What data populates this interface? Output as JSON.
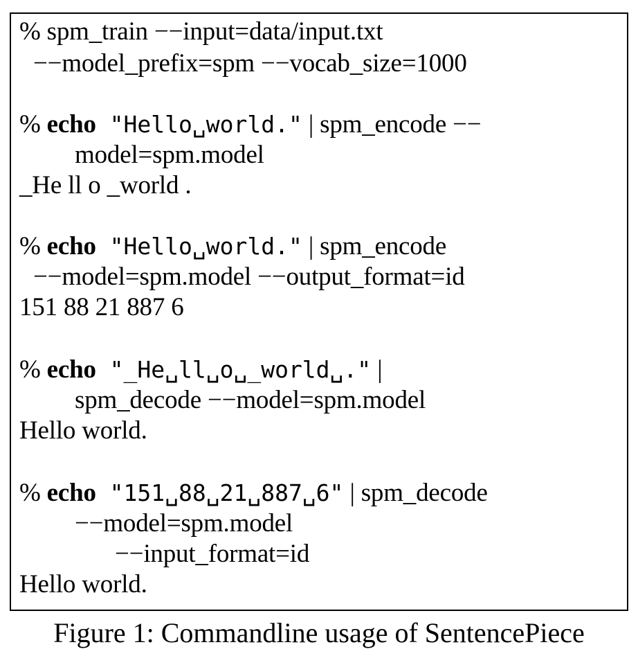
{
  "code": {
    "l1": "% spm_train −−input=data/input.txt",
    "l2": "−−model_prefix=spm −−vocab_size=1000",
    "l3_prefix": "% ",
    "l3_cmd": "echo",
    "l3_string": " \"Hello␣world.\"",
    "l3_rest": " | spm_encode −−",
    "l4": "model=spm.model",
    "l5": "_He ll o _world .",
    "l6_prefix": "% ",
    "l6_cmd": "echo",
    "l6_string": " \"Hello␣world.\"",
    "l6_rest": " | spm_encode",
    "l7": "−−model=spm.model −−output_format=id",
    "l8": "151 88 21 887 6",
    "l9_prefix": "% ",
    "l9_cmd": "echo",
    "l9_string": " \"_He␣ll␣o␣_world␣.\"",
    "l9_rest": " |",
    "l10": "spm_decode −−model=spm.model",
    "l11": "Hello world.",
    "l12_prefix": "% ",
    "l12_cmd": "echo",
    "l12_string": " \"151␣88␣21␣887␣6\"",
    "l12_rest": " | spm_decode",
    "l13": "−−model=spm.model",
    "l14": "−−input_format=id",
    "l15": "Hello world."
  },
  "caption": "Figure 1: Commandline usage of SentencePiece"
}
